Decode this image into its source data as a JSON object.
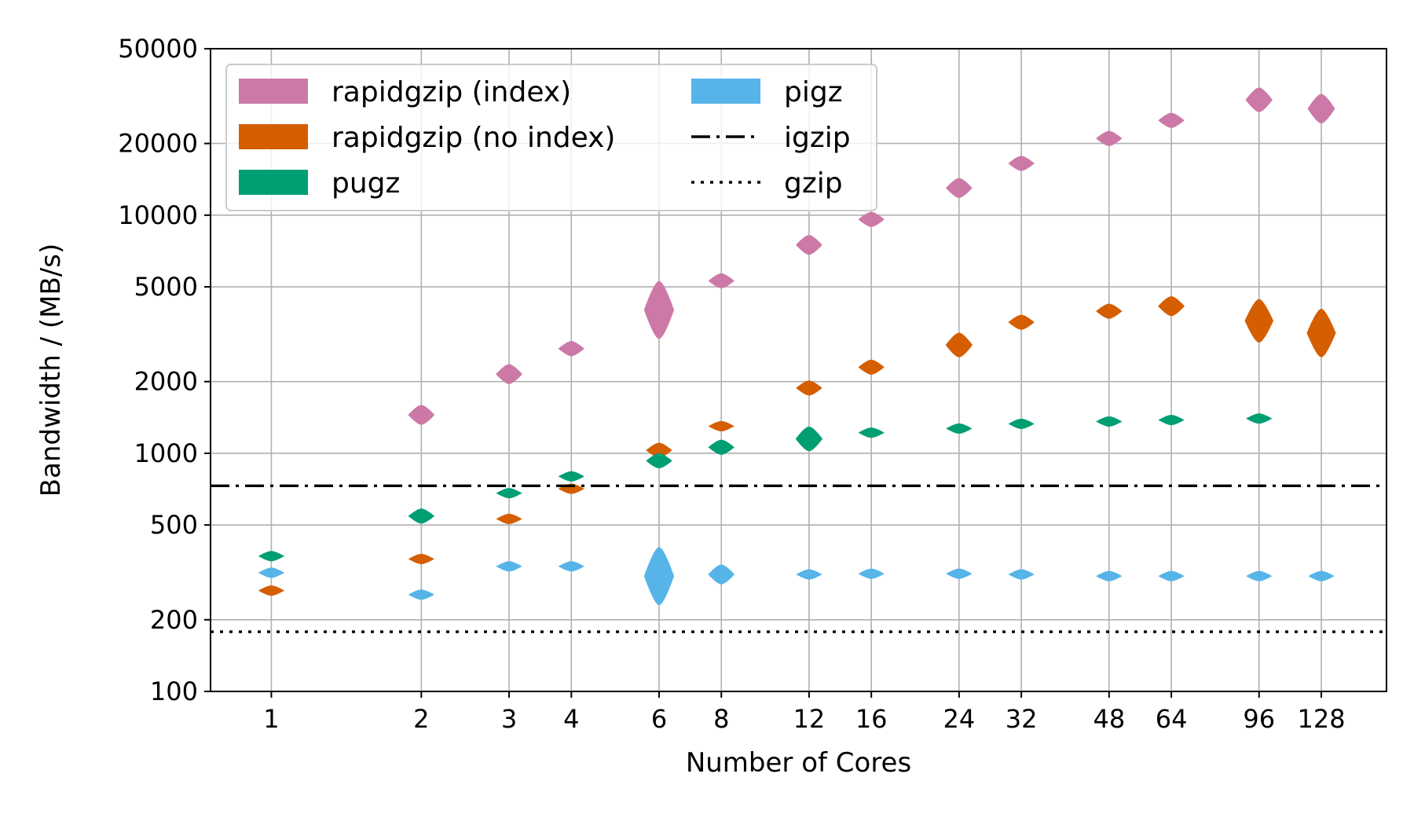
{
  "chart_data": {
    "type": "violin",
    "xlabel": "Number of Cores",
    "ylabel": "Bandwidth / (MB/s)",
    "x_scale": "log",
    "y_scale": "log",
    "ylim": [
      100,
      50000
    ],
    "grid": true,
    "legend_placement": "top-left",
    "x_ticks": [
      1,
      2,
      3,
      4,
      6,
      8,
      12,
      16,
      24,
      32,
      48,
      64,
      96,
      128
    ],
    "y_ticks": [
      100,
      200,
      500,
      1000,
      2000,
      5000,
      10000,
      20000,
      50000
    ],
    "series": [
      {
        "name": "rapidgzip (index)",
        "color": "#cc79a7",
        "style": "violin",
        "points": [
          {
            "x": 2,
            "y": 1450,
            "spread": 0.04
          },
          {
            "x": 3,
            "y": 2150,
            "spread": 0.04
          },
          {
            "x": 4,
            "y": 2750,
            "spread": 0.03
          },
          {
            "x": 6,
            "y": 4000,
            "spread": 0.12
          },
          {
            "x": 8,
            "y": 5300,
            "spread": 0.03
          },
          {
            "x": 12,
            "y": 7500,
            "spread": 0.04
          },
          {
            "x": 16,
            "y": 9600,
            "spread": 0.03
          },
          {
            "x": 24,
            "y": 13000,
            "spread": 0.04
          },
          {
            "x": 32,
            "y": 16500,
            "spread": 0.03
          },
          {
            "x": 48,
            "y": 21000,
            "spread": 0.03
          },
          {
            "x": 64,
            "y": 25000,
            "spread": 0.03
          },
          {
            "x": 96,
            "y": 30500,
            "spread": 0.05
          },
          {
            "x": 128,
            "y": 28000,
            "spread": 0.06
          }
        ]
      },
      {
        "name": "rapidgzip (no index)",
        "color": "#d55e00",
        "style": "violin",
        "points": [
          {
            "x": 1,
            "y": 265,
            "spread": 0.02
          },
          {
            "x": 2,
            "y": 360,
            "spread": 0.02
          },
          {
            "x": 3,
            "y": 530,
            "spread": 0.02
          },
          {
            "x": 4,
            "y": 710,
            "spread": 0.02
          },
          {
            "x": 6,
            "y": 1030,
            "spread": 0.03
          },
          {
            "x": 8,
            "y": 1300,
            "spread": 0.02
          },
          {
            "x": 12,
            "y": 1880,
            "spread": 0.03
          },
          {
            "x": 16,
            "y": 2300,
            "spread": 0.03
          },
          {
            "x": 24,
            "y": 2850,
            "spread": 0.05
          },
          {
            "x": 32,
            "y": 3550,
            "spread": 0.03
          },
          {
            "x": 48,
            "y": 3950,
            "spread": 0.03
          },
          {
            "x": 64,
            "y": 4150,
            "spread": 0.04
          },
          {
            "x": 96,
            "y": 3600,
            "spread": 0.09
          },
          {
            "x": 128,
            "y": 3200,
            "spread": 0.1
          }
        ]
      },
      {
        "name": "pugz",
        "color": "#009e73",
        "style": "violin",
        "points": [
          {
            "x": 1,
            "y": 370,
            "spread": 0.02
          },
          {
            "x": 2,
            "y": 545,
            "spread": 0.03
          },
          {
            "x": 3,
            "y": 680,
            "spread": 0.02
          },
          {
            "x": 4,
            "y": 800,
            "spread": 0.02
          },
          {
            "x": 6,
            "y": 930,
            "spread": 0.03
          },
          {
            "x": 8,
            "y": 1060,
            "spread": 0.03
          },
          {
            "x": 12,
            "y": 1150,
            "spread": 0.05
          },
          {
            "x": 16,
            "y": 1220,
            "spread": 0.02
          },
          {
            "x": 24,
            "y": 1270,
            "spread": 0.02
          },
          {
            "x": 32,
            "y": 1330,
            "spread": 0.02
          },
          {
            "x": 48,
            "y": 1360,
            "spread": 0.02
          },
          {
            "x": 64,
            "y": 1380,
            "spread": 0.02
          },
          {
            "x": 96,
            "y": 1400,
            "spread": 0.02
          }
        ]
      },
      {
        "name": "pigz",
        "color": "#56b4e9",
        "style": "violin",
        "points": [
          {
            "x": 1,
            "y": 315,
            "spread": 0.02
          },
          {
            "x": 2,
            "y": 255,
            "spread": 0.02
          },
          {
            "x": 3,
            "y": 335,
            "spread": 0.02
          },
          {
            "x": 4,
            "y": 335,
            "spread": 0.02
          },
          {
            "x": 6,
            "y": 305,
            "spread": 0.12
          },
          {
            "x": 8,
            "y": 310,
            "spread": 0.04
          },
          {
            "x": 12,
            "y": 310,
            "spread": 0.02
          },
          {
            "x": 16,
            "y": 312,
            "spread": 0.02
          },
          {
            "x": 24,
            "y": 312,
            "spread": 0.02
          },
          {
            "x": 32,
            "y": 310,
            "spread": 0.02
          },
          {
            "x": 48,
            "y": 305,
            "spread": 0.02
          },
          {
            "x": 64,
            "y": 305,
            "spread": 0.02
          },
          {
            "x": 96,
            "y": 305,
            "spread": 0.02
          },
          {
            "x": 128,
            "y": 305,
            "spread": 0.02
          }
        ]
      },
      {
        "name": "igzip",
        "color": "#000000",
        "style": "dashdot",
        "y": 730
      },
      {
        "name": "gzip",
        "color": "#000000",
        "style": "dotted",
        "y": 178
      }
    ]
  }
}
